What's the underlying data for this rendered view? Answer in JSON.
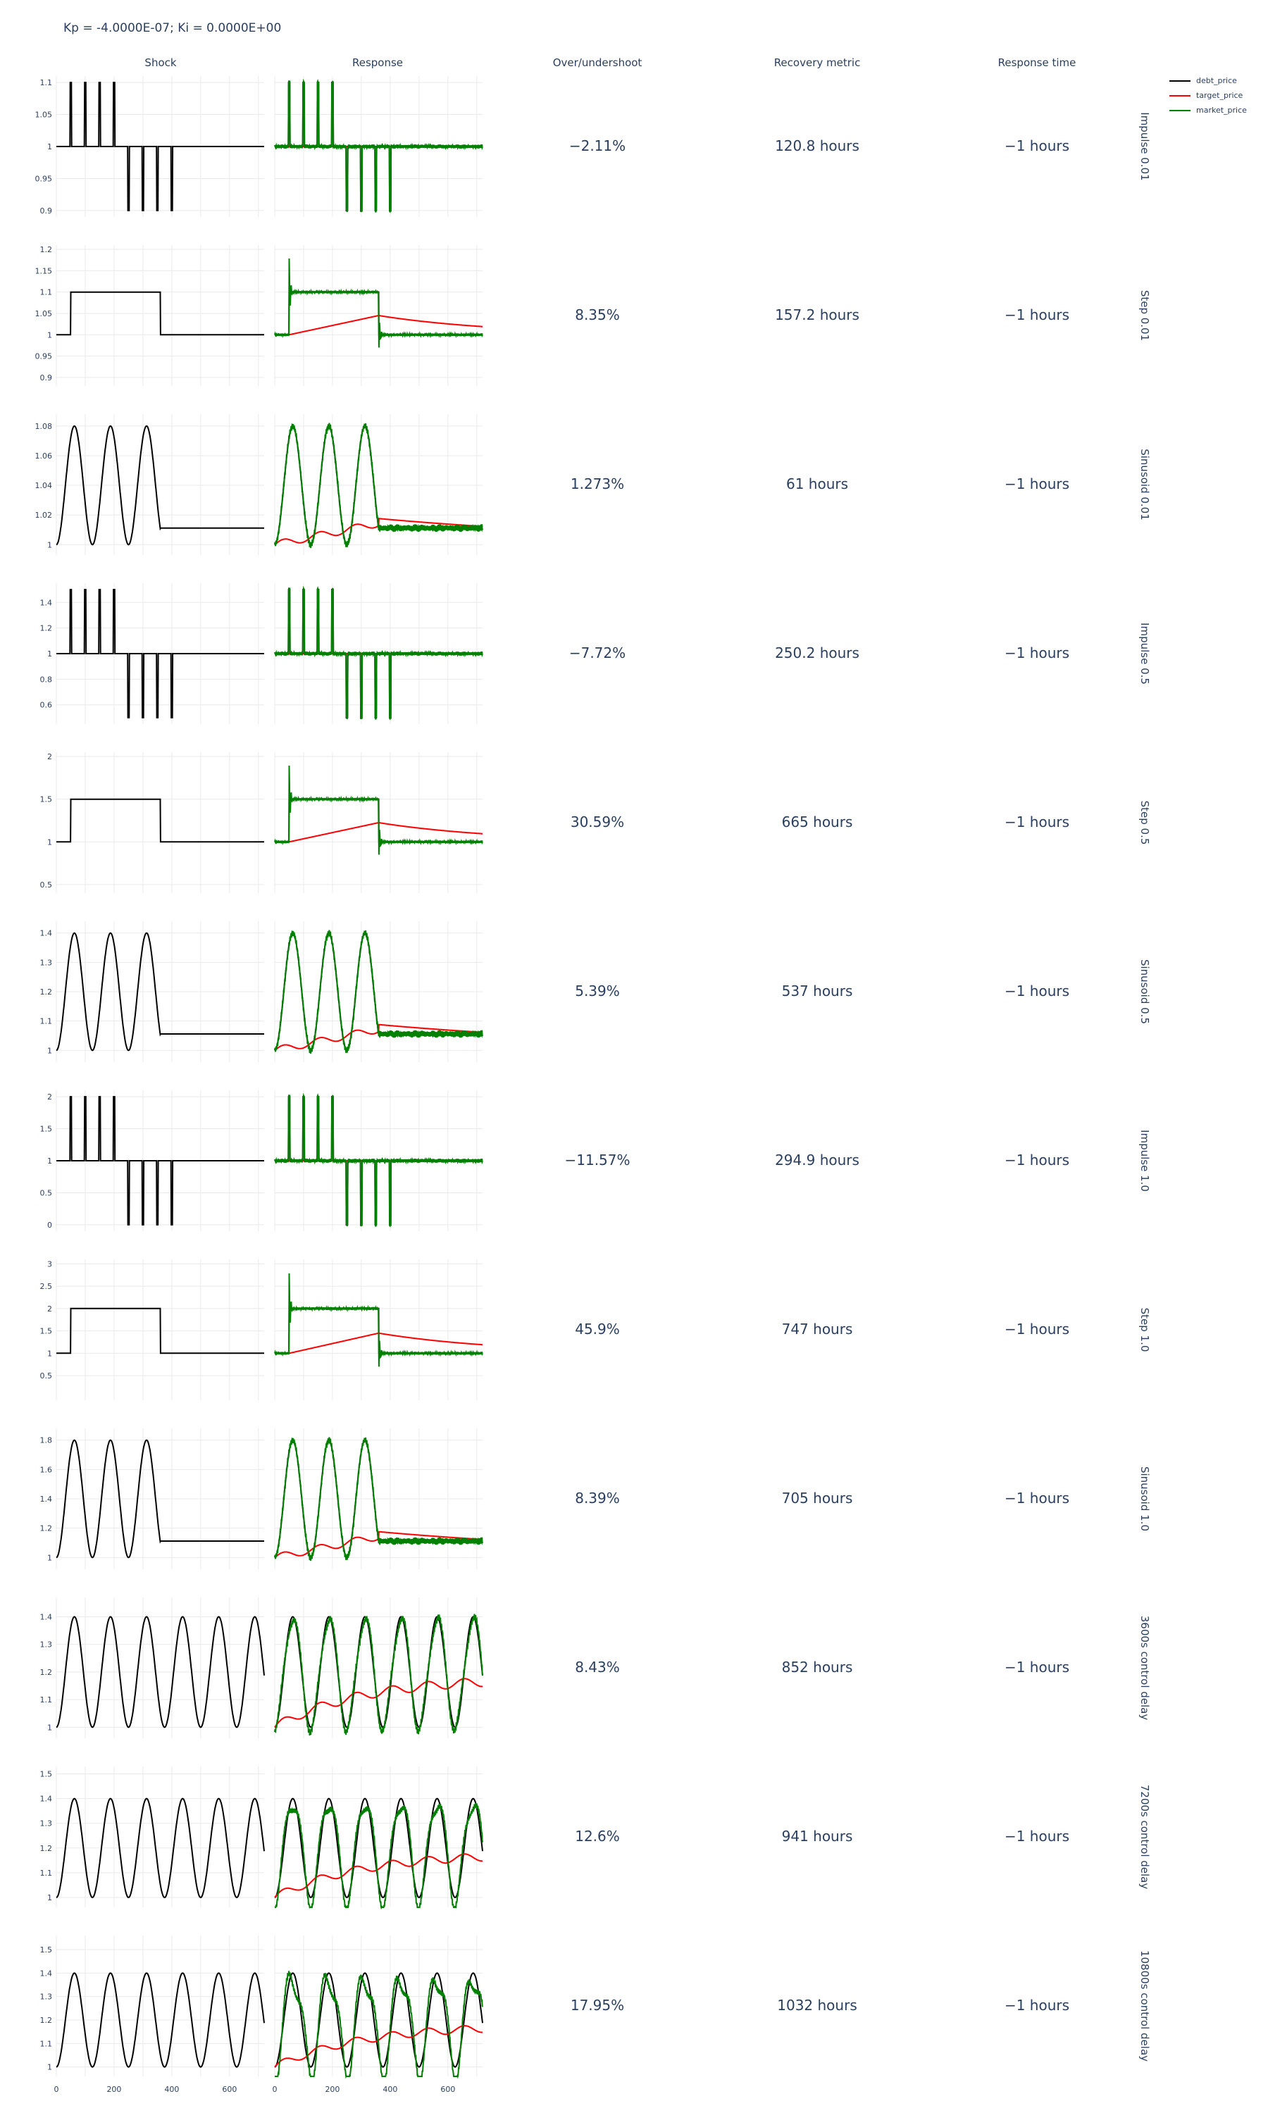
{
  "title": "Kp = -4.0000E-07; Ki = 0.0000E+00",
  "columns": [
    "Shock",
    "Response",
    "Over/undershoot",
    "Recovery metric",
    "Response time"
  ],
  "legend": [
    {
      "name": "debt_price",
      "color": "#000000"
    },
    {
      "name": "target_price",
      "color": "#ff0000"
    },
    {
      "name": "market_price",
      "color": "#008000"
    }
  ],
  "x_ticks": [
    "0",
    "200",
    "400",
    "600"
  ],
  "chart_data": {
    "type": "line",
    "xlim": [
      0,
      720
    ],
    "grid": true,
    "legend_position": "top-right",
    "rows": [
      {
        "label": "Impulse 0.01",
        "kind": "impulse",
        "amp": 0.1,
        "yticks": [
          "0.9",
          "0.95",
          "1",
          "1.05",
          "1.1"
        ],
        "ylim": [
          0.89,
          1.11
        ],
        "overshoot": "−2.11%",
        "recovery": "120.8 hours",
        "response_time": "−1 hours"
      },
      {
        "label": "Step 0.01",
        "kind": "step",
        "amp": 0.1,
        "yticks": [
          "0.9",
          "0.95",
          "1",
          "1.05",
          "1.1",
          "1.15",
          "1.2"
        ],
        "ylim": [
          0.88,
          1.21
        ],
        "overshoot": "8.35%",
        "recovery": "157.2 hours",
        "response_time": "−1 hours"
      },
      {
        "label": "Sinusoid 0.01",
        "kind": "sin",
        "amp": 0.08,
        "yticks": [
          "1",
          "1.02",
          "1.04",
          "1.06",
          "1.08"
        ],
        "ylim": [
          0.993,
          1.088
        ],
        "overshoot": "1.273%",
        "recovery": "61 hours",
        "response_time": "−1 hours"
      },
      {
        "label": "Impulse 0.5",
        "kind": "impulse",
        "amp": 0.5,
        "yticks": [
          "0.6",
          "0.8",
          "1",
          "1.2",
          "1.4"
        ],
        "ylim": [
          0.45,
          1.55
        ],
        "overshoot": "−7.72%",
        "recovery": "250.2 hours",
        "response_time": "−1 hours"
      },
      {
        "label": "Step 0.5",
        "kind": "step",
        "amp": 0.5,
        "yticks": [
          "0.5",
          "1",
          "1.5",
          "2"
        ],
        "ylim": [
          0.4,
          2.05
        ],
        "overshoot": "30.59%",
        "recovery": "665 hours",
        "response_time": "−1 hours"
      },
      {
        "label": "Sinusoid 0.5",
        "kind": "sin",
        "amp": 0.4,
        "yticks": [
          "1",
          "1.1",
          "1.2",
          "1.3",
          "1.4"
        ],
        "ylim": [
          0.96,
          1.44
        ],
        "overshoot": "5.39%",
        "recovery": "537 hours",
        "response_time": "−1 hours"
      },
      {
        "label": "Impulse 1.0",
        "kind": "impulse",
        "amp": 1.0,
        "yticks": [
          "0",
          "0.5",
          "1",
          "1.5",
          "2"
        ],
        "ylim": [
          -0.1,
          2.1
        ],
        "overshoot": "−11.57%",
        "recovery": "294.9 hours",
        "response_time": "−1 hours"
      },
      {
        "label": "Step 1.0",
        "kind": "step",
        "amp": 1.0,
        "yticks": [
          "0.5",
          "1",
          "1.5",
          "2",
          "2.5",
          "3"
        ],
        "ylim": [
          -0.05,
          3.1
        ],
        "overshoot": "45.9%",
        "recovery": "747 hours",
        "response_time": "−1 hours"
      },
      {
        "label": "Sinusoid 1.0",
        "kind": "sin",
        "amp": 0.8,
        "yticks": [
          "1",
          "1.2",
          "1.4",
          "1.6",
          "1.8"
        ],
        "ylim": [
          0.92,
          1.88
        ],
        "overshoot": "8.39%",
        "recovery": "705 hours",
        "response_time": "−1 hours"
      },
      {
        "label": "3600s control delay",
        "kind": "sinlong",
        "amp": 0.4,
        "delay": 1,
        "yticks": [
          "1",
          "1.1",
          "1.2",
          "1.3",
          "1.4"
        ],
        "ylim": [
          0.96,
          1.47
        ],
        "overshoot": "8.43%",
        "recovery": "852 hours",
        "response_time": "−1 hours"
      },
      {
        "label": "7200s control delay",
        "kind": "sinlong",
        "amp": 0.4,
        "delay": 2,
        "yticks": [
          "1",
          "1.1",
          "1.2",
          "1.3",
          "1.4",
          "1.5"
        ],
        "ylim": [
          0.96,
          1.53
        ],
        "overshoot": "12.6%",
        "recovery": "941 hours",
        "response_time": "−1 hours"
      },
      {
        "label": "10800s control delay",
        "kind": "sinlong",
        "amp": 0.4,
        "delay": 3,
        "yticks": [
          "1",
          "1.1",
          "1.2",
          "1.3",
          "1.4",
          "1.5"
        ],
        "ylim": [
          0.96,
          1.56
        ],
        "overshoot": "17.95%",
        "recovery": "1032 hours",
        "response_time": "−1 hours"
      }
    ]
  }
}
